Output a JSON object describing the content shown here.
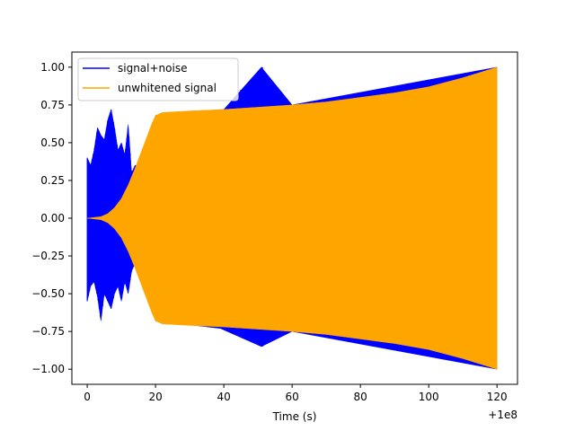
{
  "chart_data": {
    "type": "line",
    "title": "",
    "xlabel": "Time (s)",
    "ylabel": "",
    "x_offset_text": "+1e8",
    "xlim": [
      -4.5,
      126
    ],
    "ylim": [
      -1.1,
      1.1
    ],
    "x_ticks": [
      0,
      20,
      40,
      60,
      80,
      100,
      120
    ],
    "x_tick_labels": [
      "0",
      "20",
      "40",
      "60",
      "80",
      "100",
      "120"
    ],
    "y_ticks": [
      -1.0,
      -0.75,
      -0.5,
      -0.25,
      0.0,
      0.25,
      0.5,
      0.75,
      1.0
    ],
    "y_tick_labels": [
      "−1.00",
      "−0.75",
      "−0.50",
      "−0.25",
      "0.00",
      "0.25",
      "0.50",
      "0.75",
      "1.00"
    ],
    "grid": false,
    "legend_position": "upper-left",
    "series": [
      {
        "name": "signal+noise",
        "color": "#0000ff",
        "envelope_upper": [
          [
            0,
            0.4
          ],
          [
            1,
            0.35
          ],
          [
            2,
            0.45
          ],
          [
            3,
            0.6
          ],
          [
            4,
            0.55
          ],
          [
            5,
            0.52
          ],
          [
            6,
            0.65
          ],
          [
            7,
            0.72
          ],
          [
            8,
            0.6
          ],
          [
            9,
            0.45
          ],
          [
            10,
            0.5
          ],
          [
            11,
            0.42
          ],
          [
            12,
            0.62
          ],
          [
            13,
            0.3
          ],
          [
            14,
            0.35
          ],
          [
            16,
            0.35
          ],
          [
            18,
            0.4
          ],
          [
            20,
            0.68
          ],
          [
            40,
            0.72
          ],
          [
            51,
            1.0
          ],
          [
            60,
            0.75
          ],
          [
            120,
            1.0
          ]
        ],
        "envelope_lower": [
          [
            0,
            -0.55
          ],
          [
            1,
            -0.45
          ],
          [
            2,
            -0.42
          ],
          [
            3,
            -0.52
          ],
          [
            4,
            -0.68
          ],
          [
            5,
            -0.5
          ],
          [
            6,
            -0.55
          ],
          [
            7,
            -0.6
          ],
          [
            8,
            -0.5
          ],
          [
            9,
            -0.45
          ],
          [
            10,
            -0.55
          ],
          [
            11,
            -0.42
          ],
          [
            12,
            -0.5
          ],
          [
            13,
            -0.35
          ],
          [
            14,
            -0.3
          ],
          [
            16,
            -0.3
          ],
          [
            18,
            -0.55
          ],
          [
            20,
            -0.68
          ],
          [
            39,
            -0.73
          ],
          [
            51,
            -0.85
          ],
          [
            60,
            -0.75
          ],
          [
            120,
            -1.0
          ]
        ]
      },
      {
        "name": "unwhitened signal",
        "color": "#ffa500",
        "envelope": [
          [
            0,
            0.0
          ],
          [
            4,
            0.01
          ],
          [
            6,
            0.03
          ],
          [
            8,
            0.07
          ],
          [
            10,
            0.13
          ],
          [
            12,
            0.22
          ],
          [
            14,
            0.33
          ],
          [
            16,
            0.45
          ],
          [
            18,
            0.57
          ],
          [
            19,
            0.63
          ],
          [
            20,
            0.68
          ],
          [
            22,
            0.7
          ],
          [
            30,
            0.71
          ],
          [
            40,
            0.72
          ],
          [
            50,
            0.735
          ],
          [
            60,
            0.75
          ],
          [
            70,
            0.77
          ],
          [
            80,
            0.8
          ],
          [
            90,
            0.83
          ],
          [
            100,
            0.87
          ],
          [
            110,
            0.93
          ],
          [
            120,
            1.0
          ]
        ]
      }
    ]
  }
}
